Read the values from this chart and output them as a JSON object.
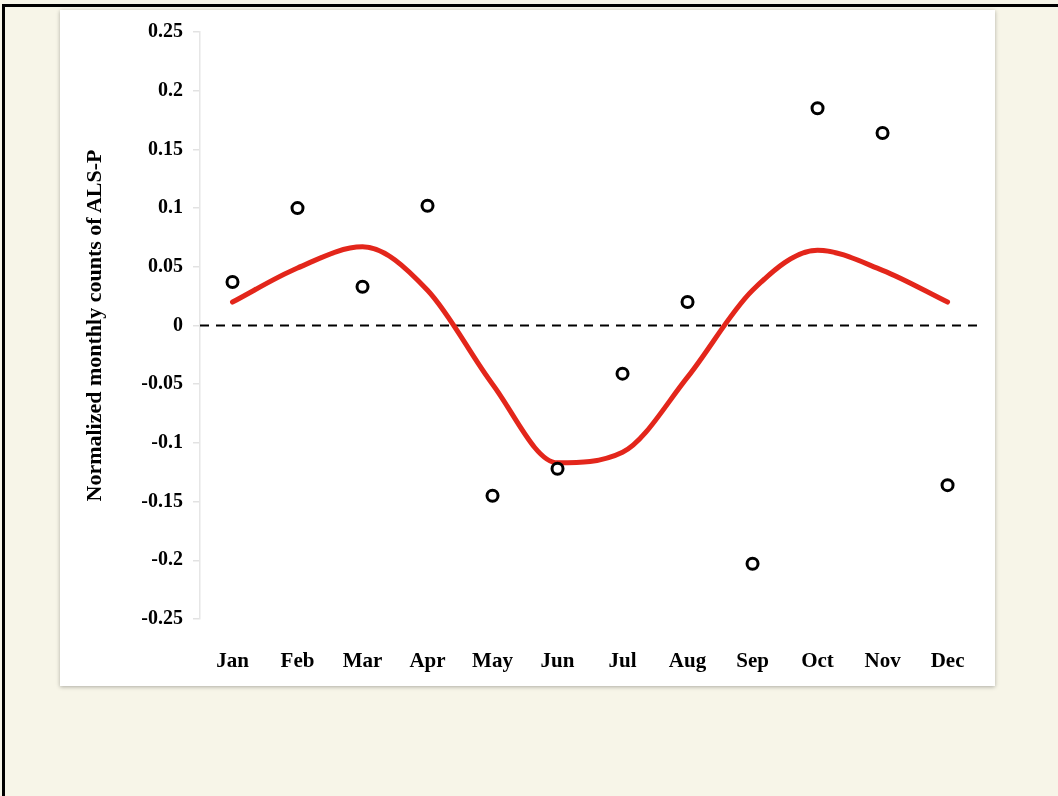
{
  "chart_data": {
    "type": "scatter",
    "ylabel": "Normalized monthly counts of ALS-P",
    "categories": [
      "Jan",
      "Feb",
      "Mar",
      "Apr",
      "May",
      "Jun",
      "Jul",
      "Aug",
      "Sep",
      "Oct",
      "Nov",
      "Dec"
    ],
    "ylim": [
      -0.25,
      0.25
    ],
    "yticks": [
      -0.25,
      -0.2,
      -0.15,
      -0.1,
      -0.05,
      0,
      0.05,
      0.1,
      0.15,
      0.2,
      0.25
    ],
    "ref_lines": [
      {
        "axis": "y",
        "value": 0,
        "color": "#000000",
        "line_style": "dashed"
      }
    ],
    "series": [
      {
        "color": "#000000",
        "marker": "circle",
        "values": [
          0.037,
          0.1,
          0.033,
          0.102,
          -0.145,
          -0.122,
          -0.041,
          0.02,
          -0.203,
          0.185,
          0.164,
          -0.136
        ]
      },
      {
        "type": "line",
        "color": "#e3261b",
        "marker": "none",
        "line_style": "solid",
        "values": [
          0.02,
          0.049,
          0.067,
          0.03,
          -0.05,
          -0.117,
          -0.108,
          -0.044,
          0.03,
          0.064,
          0.047,
          0.02
        ]
      }
    ]
  }
}
